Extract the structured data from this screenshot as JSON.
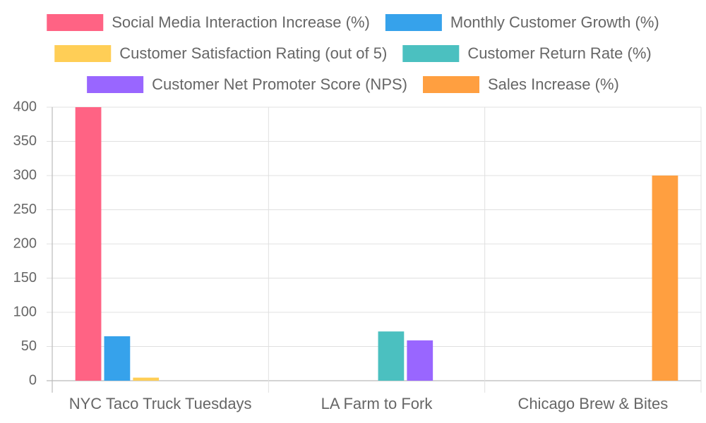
{
  "chart_data": {
    "type": "bar",
    "categories": [
      "NYC Taco Truck Tuesdays",
      "LA Farm to Fork",
      "Chicago Brew & Bites"
    ],
    "series": [
      {
        "name": "Social Media Interaction Increase (%)",
        "color": "#ff6384",
        "values": [
          400,
          null,
          null
        ]
      },
      {
        "name": "Monthly Customer Growth (%)",
        "color": "#36a2eb",
        "values": [
          65,
          null,
          null
        ]
      },
      {
        "name": "Customer Satisfaction Rating (out of 5)",
        "color": "#ffce56",
        "values": [
          4.5,
          null,
          null
        ]
      },
      {
        "name": "Customer Return Rate (%)",
        "color": "#4bc0c0",
        "values": [
          null,
          72,
          null
        ]
      },
      {
        "name": "Customer Net Promoter Score (NPS)",
        "color": "#9966ff",
        "values": [
          null,
          59,
          null
        ]
      },
      {
        "name": "Sales Increase (%)",
        "color": "#ff9f40",
        "values": [
          null,
          null,
          300
        ]
      }
    ],
    "ylim": [
      0,
      400
    ],
    "yticks": [
      0,
      50,
      100,
      150,
      200,
      250,
      300,
      350,
      400
    ],
    "grid": true
  }
}
